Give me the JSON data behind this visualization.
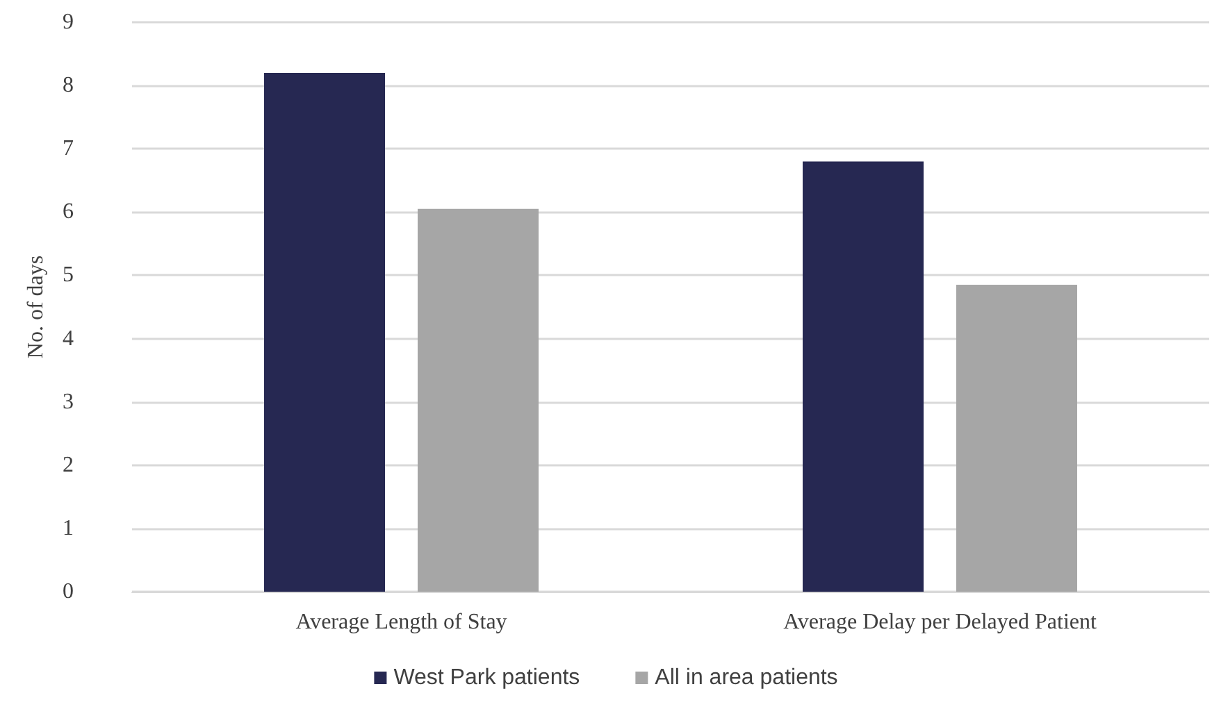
{
  "chart_data": {
    "type": "bar",
    "ylabel": "No. of days",
    "categories": [
      "Average Length of Stay",
      "Average Delay per Delayed Patient"
    ],
    "series": [
      {
        "name": "West Park patients",
        "color": "#262852",
        "values": [
          8.2,
          6.8
        ]
      },
      {
        "name": "All in area patients",
        "color": "#a6a6a6",
        "values": [
          6.05,
          4.85
        ]
      }
    ],
    "ylim": [
      0,
      9
    ],
    "yticks": [
      0,
      1,
      2,
      3,
      4,
      5,
      6,
      7,
      8,
      9
    ],
    "grid": "y",
    "legend": "bottom"
  }
}
